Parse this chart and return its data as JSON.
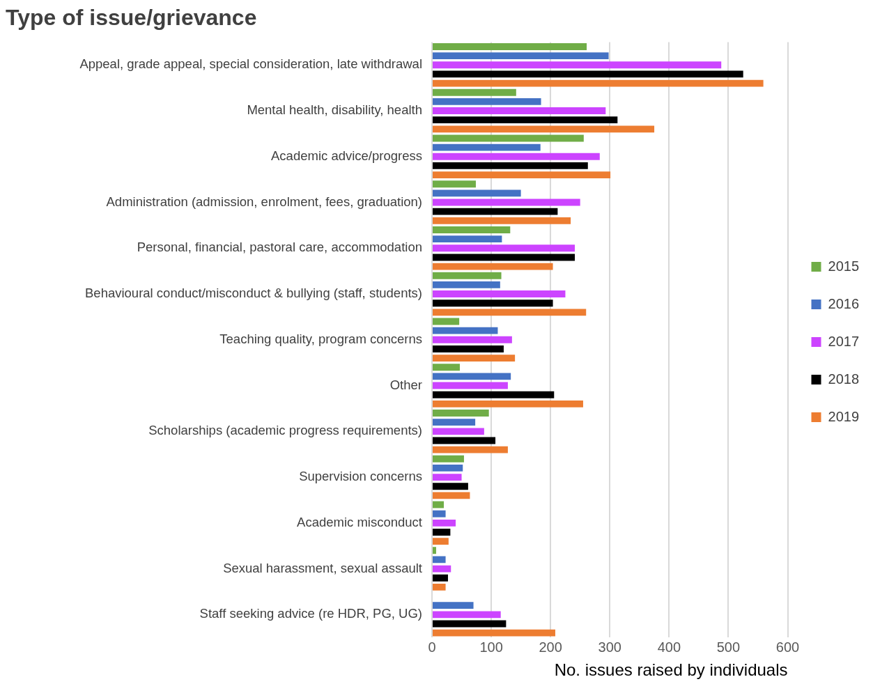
{
  "chart_data": {
    "type": "bar",
    "orientation": "horizontal",
    "title": "Type of issue/grievance",
    "xlabel": "No. issues raised by individuals",
    "categories": [
      "Appeal, grade appeal, special consideration, late withdrawal",
      "Mental health, disability, health",
      "Academic advice/progress",
      "Administration (admission, enrolment, fees, graduation)",
      "Personal, financial, pastoral care, accommodation",
      "Behavioural conduct/misconduct & bullying (staff, students)",
      "Teaching quality, program concerns",
      "Other",
      "Scholarships (academic progress requirements)",
      "Supervision concerns",
      "Academic misconduct",
      "Sexual harassment, sexual assault",
      "Staff seeking advice (re HDR, PG, UG)"
    ],
    "series": [
      {
        "name": "2015",
        "color": "#70ad47",
        "values": [
          261,
          142,
          256,
          74,
          132,
          117,
          46,
          47,
          96,
          54,
          20,
          7,
          null
        ]
      },
      {
        "name": "2016",
        "color": "#4472c4",
        "values": [
          298,
          184,
          183,
          150,
          118,
          115,
          111,
          133,
          73,
          52,
          23,
          23,
          70
        ]
      },
      {
        "name": "2017",
        "color": "#cc44ff",
        "values": [
          488,
          293,
          283,
          250,
          241,
          225,
          135,
          128,
          88,
          50,
          40,
          32,
          116
        ]
      },
      {
        "name": "2018",
        "color": "#000000",
        "values": [
          525,
          313,
          263,
          212,
          241,
          204,
          121,
          206,
          107,
          61,
          31,
          27,
          125
        ]
      },
      {
        "name": "2019",
        "color": "#ed7d31",
        "values": [
          559,
          375,
          301,
          234,
          204,
          260,
          140,
          255,
          128,
          64,
          28,
          23,
          208
        ]
      }
    ],
    "xlim": [
      0,
      600
    ],
    "xticks": [
      0,
      100,
      200,
      300,
      400,
      500,
      600
    ],
    "grid": "x",
    "legend": "right"
  }
}
